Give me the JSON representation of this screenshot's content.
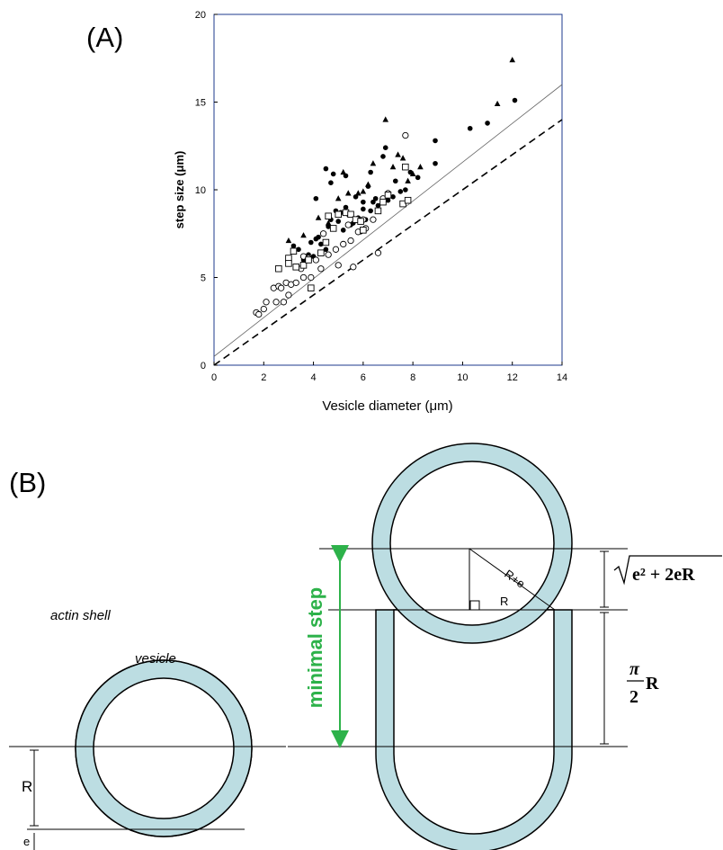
{
  "panels": {
    "a_label": "(A)",
    "b_label": "(B)"
  },
  "chart_data": {
    "type": "scatter",
    "title": "",
    "xlabel": "Vesicle diameter (μm)",
    "ylabel": "step size (μm)",
    "xlim": [
      0,
      14
    ],
    "ylim": [
      0,
      20
    ],
    "xticks": [
      "0",
      "2",
      "4",
      "6",
      "8",
      "10",
      "12",
      "14"
    ],
    "yticks": [
      "0",
      "5",
      "10",
      "15",
      "20"
    ],
    "grid": false,
    "series": [
      {
        "marker": "filled-circle",
        "points": [
          [
            3.2,
            6.8
          ],
          [
            3.4,
            6.6
          ],
          [
            3.6,
            6.0
          ],
          [
            3.8,
            6.3
          ],
          [
            3.9,
            7.0
          ],
          [
            4.0,
            6.2
          ],
          [
            4.1,
            7.2
          ],
          [
            4.2,
            7.3
          ],
          [
            4.3,
            6.9
          ],
          [
            4.4,
            7.5
          ],
          [
            4.5,
            6.6
          ],
          [
            4.6,
            7.9
          ],
          [
            4.7,
            8.3
          ],
          [
            4.8,
            7.8
          ],
          [
            4.9,
            8.8
          ],
          [
            5.0,
            8.2
          ],
          [
            5.1,
            8.7
          ],
          [
            5.2,
            7.7
          ],
          [
            5.3,
            9.0
          ],
          [
            5.4,
            8.6
          ],
          [
            5.5,
            8.0
          ],
          [
            5.6,
            8.1
          ],
          [
            5.7,
            9.6
          ],
          [
            5.8,
            8.4
          ],
          [
            5.9,
            7.6
          ],
          [
            6.0,
            8.9
          ],
          [
            6.1,
            8.3
          ],
          [
            6.2,
            10.2
          ],
          [
            6.3,
            8.8
          ],
          [
            6.4,
            9.3
          ],
          [
            6.5,
            9.5
          ],
          [
            6.6,
            9.1
          ],
          [
            6.8,
            11.9
          ],
          [
            6.9,
            12.4
          ],
          [
            7.0,
            9.4
          ],
          [
            7.2,
            9.6
          ],
          [
            7.3,
            10.5
          ],
          [
            7.5,
            9.9
          ],
          [
            7.7,
            10.0
          ],
          [
            7.9,
            11.0
          ],
          [
            8.2,
            10.7
          ],
          [
            8.9,
            11.5
          ],
          [
            4.1,
            9.5
          ],
          [
            4.7,
            10.4
          ],
          [
            5.3,
            10.8
          ],
          [
            6.0,
            9.3
          ],
          [
            6.3,
            11.0
          ],
          [
            8.9,
            12.8
          ],
          [
            10.3,
            13.5
          ],
          [
            11.0,
            13.8
          ],
          [
            12.1,
            15.1
          ],
          [
            4.5,
            11.2
          ],
          [
            4.8,
            10.9
          ]
        ]
      },
      {
        "marker": "open-circle",
        "points": [
          [
            1.7,
            3.0
          ],
          [
            1.8,
            2.9
          ],
          [
            2.0,
            3.2
          ],
          [
            2.1,
            3.6
          ],
          [
            2.4,
            4.4
          ],
          [
            2.5,
            3.6
          ],
          [
            2.6,
            4.5
          ],
          [
            2.7,
            4.4
          ],
          [
            2.8,
            3.6
          ],
          [
            2.9,
            4.7
          ],
          [
            3.0,
            4.0
          ],
          [
            3.1,
            4.6
          ],
          [
            3.3,
            4.7
          ],
          [
            3.5,
            5.5
          ],
          [
            3.6,
            5.0
          ],
          [
            3.8,
            6.1
          ],
          [
            3.9,
            5.0
          ],
          [
            4.1,
            6.0
          ],
          [
            4.3,
            5.5
          ],
          [
            4.6,
            6.3
          ],
          [
            4.9,
            6.6
          ],
          [
            5.2,
            6.9
          ],
          [
            5.5,
            7.1
          ],
          [
            5.8,
            7.6
          ],
          [
            6.1,
            7.8
          ],
          [
            6.4,
            8.3
          ],
          [
            6.8,
            9.5
          ],
          [
            5.0,
            5.7
          ],
          [
            5.6,
            5.6
          ],
          [
            6.6,
            6.4
          ],
          [
            7.7,
            13.1
          ],
          [
            4.4,
            7.5
          ],
          [
            3.6,
            6.2
          ],
          [
            7.0,
            9.8
          ],
          [
            5.4,
            8.0
          ],
          [
            6.0,
            8.3
          ]
        ]
      },
      {
        "marker": "open-square",
        "points": [
          [
            2.6,
            5.5
          ],
          [
            3.0,
            6.1
          ],
          [
            3.2,
            6.5
          ],
          [
            3.3,
            5.6
          ],
          [
            3.6,
            5.7
          ],
          [
            3.8,
            6.0
          ],
          [
            3.9,
            4.4
          ],
          [
            4.3,
            6.4
          ],
          [
            4.5,
            7.0
          ],
          [
            4.8,
            7.8
          ],
          [
            5.0,
            8.6
          ],
          [
            5.3,
            8.7
          ],
          [
            5.5,
            8.6
          ],
          [
            5.7,
            8.3
          ],
          [
            5.9,
            8.2
          ],
          [
            6.0,
            7.7
          ],
          [
            6.6,
            8.8
          ],
          [
            6.8,
            9.3
          ],
          [
            7.0,
            9.7
          ],
          [
            7.6,
            9.2
          ],
          [
            7.7,
            11.3
          ],
          [
            7.8,
            9.4
          ],
          [
            3.0,
            5.8
          ],
          [
            4.6,
            8.5
          ]
        ]
      },
      {
        "marker": "filled-triangle",
        "points": [
          [
            3.0,
            7.1
          ],
          [
            3.6,
            7.4
          ],
          [
            4.2,
            8.4
          ],
          [
            4.6,
            8.1
          ],
          [
            5.0,
            9.5
          ],
          [
            5.4,
            9.8
          ],
          [
            5.8,
            9.8
          ],
          [
            6.2,
            10.3
          ],
          [
            6.4,
            11.5
          ],
          [
            6.9,
            14.0
          ],
          [
            7.2,
            11.3
          ],
          [
            7.4,
            12.0
          ],
          [
            7.6,
            11.8
          ],
          [
            7.8,
            10.5
          ],
          [
            8.0,
            10.9
          ],
          [
            8.3,
            11.3
          ],
          [
            11.4,
            14.9
          ],
          [
            12.0,
            17.4
          ],
          [
            5.2,
            11.0
          ],
          [
            6.0,
            9.9
          ]
        ]
      },
      {
        "marker": "dotted-line",
        "points": [
          [
            0,
            0.5
          ],
          [
            14,
            16
          ]
        ]
      },
      {
        "marker": "dashed-line",
        "points": [
          [
            0,
            0
          ],
          [
            14,
            14
          ]
        ]
      }
    ]
  },
  "diagram": {
    "actin_shell": "actin shell",
    "vesicle": "vesicle",
    "R": "R",
    "e": "e",
    "R_plus_e": "R+e",
    "minimal_step": "minimal step",
    "formula_sqrt": "e² + 2eR",
    "formula_pi": "π",
    "formula_2": "2",
    "formula_R": "R",
    "colors": {
      "shell": "#bcdde2",
      "arrow": "#2db24a"
    }
  }
}
